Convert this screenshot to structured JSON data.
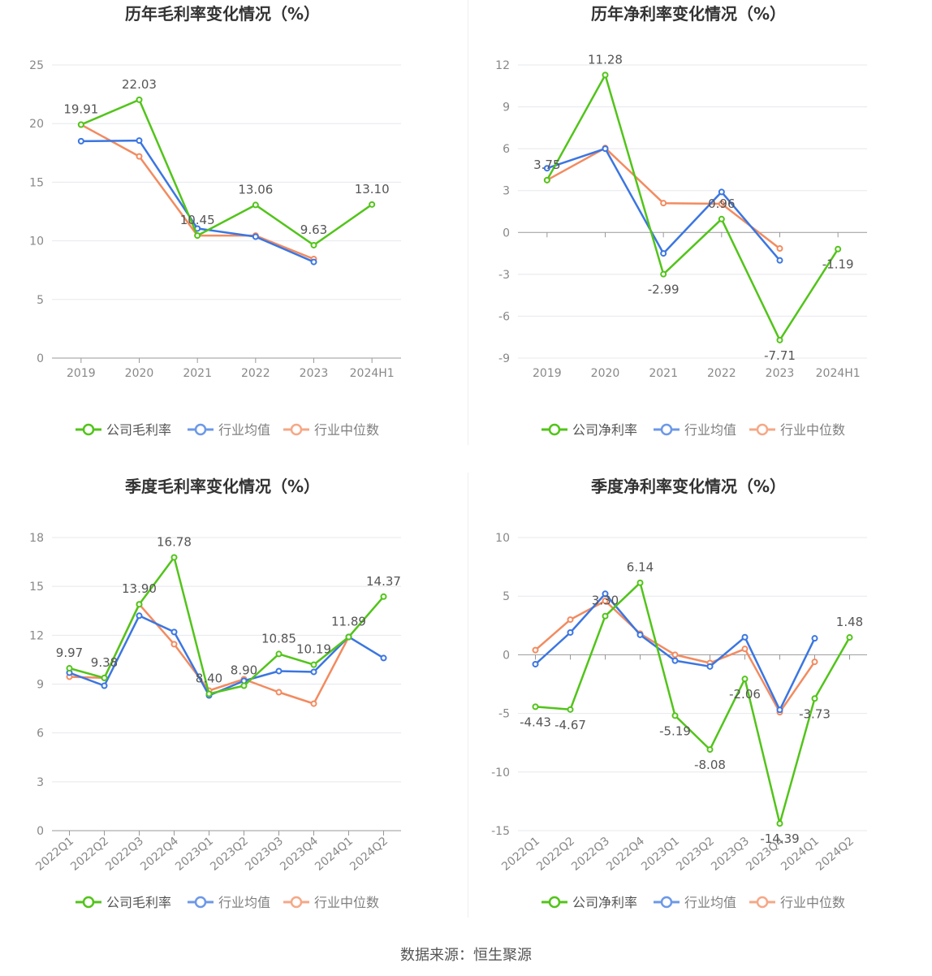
{
  "colors": {
    "company": "#52c41a",
    "industry_avg": "#3b76e1",
    "industry_median": "#f28b60",
    "grid": "#e6e8ee",
    "axis": "#999999",
    "title": "#333333",
    "tick_text": "#888888",
    "label_text": "#555555"
  },
  "source": "数据来源：恒生聚源",
  "chart_data": [
    {
      "type": "line",
      "title": "历年毛利率变化情况（%）",
      "categories": [
        "2019",
        "2020",
        "2021",
        "2022",
        "2023",
        "2024H1"
      ],
      "ylim": [
        0,
        25
      ],
      "yticks": [
        0,
        5,
        10,
        15,
        20,
        25
      ],
      "rotate_x": false,
      "series": [
        {
          "name": "公司毛利率",
          "role": "company",
          "values": [
            19.91,
            22.03,
            10.45,
            13.06,
            9.63,
            13.1
          ],
          "labels": [
            "19.91",
            "22.03",
            "10.45",
            "13.06",
            "9.63",
            "13.10"
          ]
        },
        {
          "name": "行业均值",
          "role": "industry_avg",
          "values": [
            18.5,
            18.55,
            11.05,
            10.35,
            8.2,
            null
          ]
        },
        {
          "name": "行业中位数",
          "role": "industry_median",
          "values": [
            19.91,
            17.2,
            10.45,
            10.45,
            8.45,
            null
          ]
        }
      ]
    },
    {
      "type": "line",
      "title": "历年净利率变化情况（%）",
      "categories": [
        "2019",
        "2020",
        "2021",
        "2022",
        "2023",
        "2024H1"
      ],
      "ylim": [
        -9,
        12
      ],
      "yticks": [
        -9,
        -6,
        -3,
        0,
        3,
        6,
        9,
        12
      ],
      "rotate_x": false,
      "series": [
        {
          "name": "公司净利率",
          "role": "company",
          "values": [
            3.75,
            11.28,
            -2.99,
            0.96,
            -7.71,
            -1.19
          ],
          "labels": [
            "3.75",
            "11.28",
            "-2.99",
            "0.96",
            "-7.71",
            "-1.19"
          ]
        },
        {
          "name": "行业均值",
          "role": "industry_avg",
          "values": [
            4.6,
            6.0,
            -1.5,
            2.9,
            -2.0,
            null
          ]
        },
        {
          "name": "行业中位数",
          "role": "industry_median",
          "values": [
            3.75,
            6.05,
            2.1,
            2.05,
            -1.15,
            null
          ]
        }
      ]
    },
    {
      "type": "line",
      "title": "季度毛利率变化情况（%）",
      "categories": [
        "2022Q1",
        "2022Q2",
        "2022Q3",
        "2022Q4",
        "2023Q1",
        "2023Q2",
        "2023Q3",
        "2023Q4",
        "2024Q1",
        "2024Q2"
      ],
      "ylim": [
        0,
        18
      ],
      "yticks": [
        0,
        3,
        6,
        9,
        12,
        15,
        18
      ],
      "rotate_x": true,
      "series": [
        {
          "name": "公司毛利率",
          "role": "company",
          "values": [
            9.97,
            9.38,
            13.9,
            16.78,
            8.4,
            8.9,
            10.85,
            10.19,
            11.89,
            14.37
          ],
          "labels": [
            "9.97",
            "9.38",
            "13.90",
            "16.78",
            "8.40",
            "8.90",
            "10.85",
            "10.19",
            "11.89",
            "14.37"
          ]
        },
        {
          "name": "行业均值",
          "role": "industry_avg",
          "values": [
            9.7,
            8.9,
            13.2,
            12.2,
            8.3,
            9.2,
            9.8,
            9.75,
            11.9,
            10.6
          ]
        },
        {
          "name": "行业中位数",
          "role": "industry_median",
          "values": [
            9.45,
            9.38,
            13.9,
            11.45,
            8.6,
            9.3,
            8.5,
            7.8,
            11.89,
            null
          ]
        }
      ]
    },
    {
      "type": "line",
      "title": "季度净利率变化情况（%）",
      "categories": [
        "2022Q1",
        "2022Q2",
        "2022Q3",
        "2022Q4",
        "2023Q1",
        "2023Q2",
        "2023Q3",
        "2023Q4",
        "2024Q1",
        "2024Q2"
      ],
      "ylim": [
        -15,
        10
      ],
      "yticks": [
        -15,
        -10,
        -5,
        0,
        5,
        10
      ],
      "rotate_x": true,
      "series": [
        {
          "name": "公司净利率",
          "role": "company",
          "values": [
            -4.43,
            -4.67,
            3.3,
            6.14,
            -5.19,
            -8.08,
            -2.06,
            -14.39,
            -3.73,
            1.48
          ],
          "labels": [
            "-4.43",
            "-4.67",
            "3.30",
            "6.14",
            "-5.19",
            "-8.08",
            "-2.06",
            "-14.39",
            "-3.73",
            "1.48"
          ]
        },
        {
          "name": "行业均值",
          "role": "industry_avg",
          "values": [
            -0.8,
            1.9,
            5.2,
            1.7,
            -0.5,
            -1.0,
            1.5,
            -4.7,
            1.4,
            null
          ]
        },
        {
          "name": "行业中位数",
          "role": "industry_median",
          "values": [
            0.4,
            3.0,
            4.6,
            1.8,
            0.0,
            -0.7,
            0.5,
            -4.9,
            -0.6,
            null
          ]
        }
      ]
    }
  ]
}
